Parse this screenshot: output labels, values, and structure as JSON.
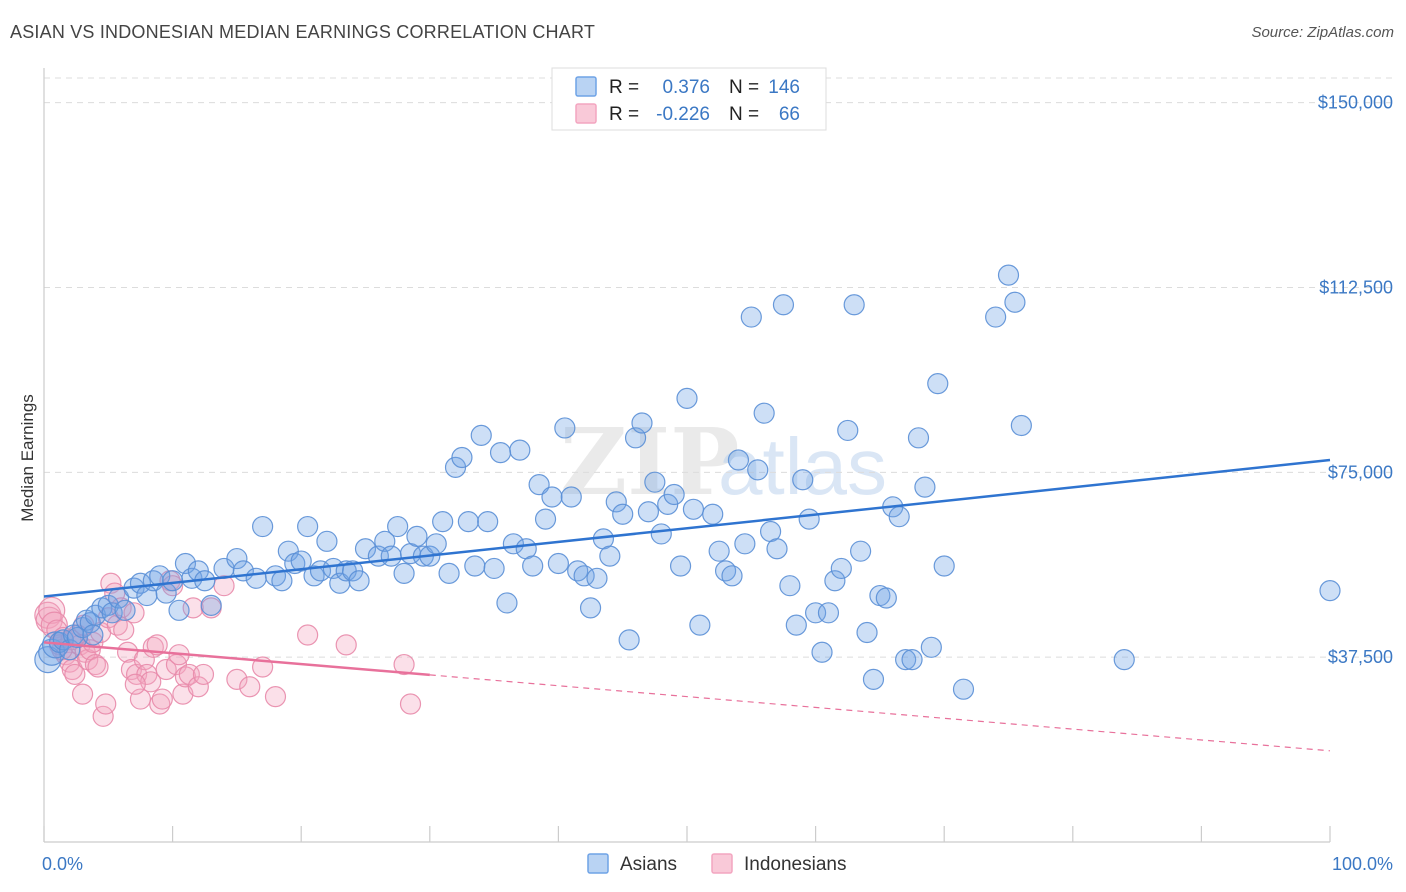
{
  "header": {
    "title": "ASIAN VS INDONESIAN MEDIAN EARNINGS CORRELATION CHART",
    "source": "Source: ZipAtlas.com"
  },
  "watermark": {
    "zip": "ZIP",
    "atlas": "atlas"
  },
  "colors": {
    "asians": "#6fa3e6",
    "asians_stroke": "#5a8fd6",
    "asians_line": "#2f74d0",
    "indonesians": "#f3a6c0",
    "indonesians_stroke": "#e889aa",
    "indonesians_line": "#e8719b",
    "tick_text": "#3b78c4",
    "grid": "#dcdcdc"
  },
  "legend": {
    "items": [
      {
        "r_label": "R =",
        "r_value": "0.376",
        "n_label": "N =",
        "n_value": "146"
      },
      {
        "r_label": "R =",
        "r_value": "-0.226",
        "n_label": "N =",
        "n_value": "66"
      }
    ]
  },
  "chart_data": {
    "type": "scatter",
    "title": "ASIAN VS INDONESIAN MEDIAN EARNINGS CORRELATION CHART",
    "xlabel": "",
    "ylabel": "Median Earnings",
    "xlim": [
      0,
      100
    ],
    "ylim": [
      0,
      155000
    ],
    "x_tick_labels": [
      "0.0%",
      "100.0%"
    ],
    "y_ticks": [
      37500,
      75000,
      112500,
      150000
    ],
    "y_tick_labels": [
      "$37,500",
      "$75,000",
      "$112,500",
      "$150,000"
    ],
    "legend_position": "bottom-center",
    "series": [
      {
        "name": "Asians",
        "r": 0.376,
        "n": 146,
        "trend": {
          "x": [
            0,
            100
          ],
          "y": [
            49800,
            77500
          ],
          "dashed_from": null
        },
        "points": [
          [
            0.3,
            37000
          ],
          [
            0.6,
            38500
          ],
          [
            0.9,
            40000
          ],
          [
            1.2,
            40500
          ],
          [
            1.5,
            41000
          ],
          [
            2.0,
            39000
          ],
          [
            2.3,
            42000
          ],
          [
            2.6,
            41500
          ],
          [
            3.0,
            43500
          ],
          [
            3.3,
            45000
          ],
          [
            3.6,
            44500
          ],
          [
            4.0,
            46000
          ],
          [
            4.5,
            47500
          ],
          [
            5.0,
            48000
          ],
          [
            5.3,
            46500
          ],
          [
            5.8,
            49500
          ],
          [
            6.3,
            47000
          ],
          [
            7.0,
            51500
          ],
          [
            7.5,
            52500
          ],
          [
            8.0,
            50000
          ],
          [
            8.5,
            53000
          ],
          [
            9.0,
            54000
          ],
          [
            9.5,
            50500
          ],
          [
            10.0,
            53000
          ],
          [
            10.5,
            47000
          ],
          [
            11.0,
            56500
          ],
          [
            11.5,
            53500
          ],
          [
            12.0,
            55000
          ],
          [
            12.5,
            53000
          ],
          [
            13.0,
            48000
          ],
          [
            14.0,
            55500
          ],
          [
            15.0,
            57500
          ],
          [
            15.5,
            55000
          ],
          [
            16.5,
            53500
          ],
          [
            17.0,
            64000
          ],
          [
            18.0,
            54000
          ],
          [
            18.5,
            53000
          ],
          [
            19.0,
            59000
          ],
          [
            19.5,
            56500
          ],
          [
            20.0,
            57000
          ],
          [
            20.5,
            64000
          ],
          [
            21.0,
            54000
          ],
          [
            21.5,
            55000
          ],
          [
            22.0,
            61000
          ],
          [
            22.5,
            55500
          ],
          [
            23.0,
            52500
          ],
          [
            23.5,
            55000
          ],
          [
            24.0,
            55000
          ],
          [
            24.5,
            53000
          ],
          [
            25.0,
            59500
          ],
          [
            26.0,
            58000
          ],
          [
            26.5,
            61000
          ],
          [
            27.0,
            58000
          ],
          [
            27.5,
            64000
          ],
          [
            28.0,
            54500
          ],
          [
            28.5,
            58500
          ],
          [
            29.0,
            62000
          ],
          [
            29.5,
            58000
          ],
          [
            30.0,
            58000
          ],
          [
            30.5,
            60500
          ],
          [
            31.0,
            65000
          ],
          [
            31.5,
            54500
          ],
          [
            32.0,
            76000
          ],
          [
            32.5,
            78000
          ],
          [
            33.0,
            65000
          ],
          [
            33.5,
            56000
          ],
          [
            34.0,
            82500
          ],
          [
            34.5,
            65000
          ],
          [
            35.0,
            55500
          ],
          [
            35.5,
            79000
          ],
          [
            36.0,
            48500
          ],
          [
            36.5,
            60500
          ],
          [
            37.0,
            79500
          ],
          [
            37.5,
            59500
          ],
          [
            38.0,
            56000
          ],
          [
            38.5,
            72500
          ],
          [
            39.0,
            65500
          ],
          [
            39.5,
            70000
          ],
          [
            40.0,
            56500
          ],
          [
            40.5,
            84000
          ],
          [
            41.0,
            70000
          ],
          [
            41.5,
            55000
          ],
          [
            42.0,
            54000
          ],
          [
            42.5,
            47500
          ],
          [
            43.0,
            53500
          ],
          [
            43.5,
            61500
          ],
          [
            44.0,
            58000
          ],
          [
            44.5,
            69000
          ],
          [
            45.0,
            66500
          ],
          [
            45.5,
            41000
          ],
          [
            46.0,
            82000
          ],
          [
            46.5,
            85000
          ],
          [
            47.0,
            67000
          ],
          [
            47.5,
            73000
          ],
          [
            48.0,
            62500
          ],
          [
            48.5,
            68500
          ],
          [
            49.0,
            70500
          ],
          [
            49.5,
            56000
          ],
          [
            50.0,
            90000
          ],
          [
            50.5,
            67500
          ],
          [
            51.0,
            44000
          ],
          [
            52.0,
            66500
          ],
          [
            52.5,
            59000
          ],
          [
            53.0,
            55000
          ],
          [
            53.5,
            54000
          ],
          [
            54.0,
            77500
          ],
          [
            54.5,
            60500
          ],
          [
            55.0,
            106500
          ],
          [
            55.5,
            75500
          ],
          [
            56.0,
            87000
          ],
          [
            56.5,
            63000
          ],
          [
            57.0,
            59500
          ],
          [
            57.5,
            109000
          ],
          [
            58.0,
            52000
          ],
          [
            58.5,
            44000
          ],
          [
            59.0,
            73500
          ],
          [
            59.5,
            65500
          ],
          [
            60.0,
            46500
          ],
          [
            60.5,
            38500
          ],
          [
            61.0,
            46500
          ],
          [
            61.5,
            53000
          ],
          [
            62.0,
            55500
          ],
          [
            62.5,
            83500
          ],
          [
            63.0,
            109000
          ],
          [
            63.5,
            59000
          ],
          [
            64.0,
            42500
          ],
          [
            64.5,
            33000
          ],
          [
            65.0,
            50000
          ],
          [
            65.5,
            49500
          ],
          [
            66.0,
            68000
          ],
          [
            66.5,
            66000
          ],
          [
            67.0,
            37000
          ],
          [
            67.5,
            37000
          ],
          [
            68.0,
            82000
          ],
          [
            68.5,
            72000
          ],
          [
            69.0,
            39500
          ],
          [
            69.5,
            93000
          ],
          [
            70.0,
            56000
          ],
          [
            71.5,
            31000
          ],
          [
            74.0,
            106500
          ],
          [
            75.0,
            115000
          ],
          [
            75.5,
            109500
          ],
          [
            76.0,
            84500
          ],
          [
            84.0,
            37000
          ],
          [
            100.0,
            51000
          ],
          [
            3.8,
            42000
          ]
        ]
      },
      {
        "name": "Indonesians",
        "r": -0.226,
        "n": 66,
        "trend": {
          "x": [
            0,
            100
          ],
          "y": [
            40500,
            18500
          ],
          "dashed_from": 30
        },
        "points": [
          [
            0.3,
            46000
          ],
          [
            0.4,
            45000
          ],
          [
            0.6,
            47000
          ],
          [
            0.8,
            44000
          ],
          [
            1.0,
            43000
          ],
          [
            1.2,
            40000
          ],
          [
            1.5,
            41500
          ],
          [
            1.7,
            38000
          ],
          [
            2.0,
            36500
          ],
          [
            2.2,
            35000
          ],
          [
            2.4,
            34000
          ],
          [
            2.6,
            42000
          ],
          [
            2.8,
            40000
          ],
          [
            3.0,
            30000
          ],
          [
            3.2,
            38500
          ],
          [
            3.4,
            37000
          ],
          [
            3.6,
            39000
          ],
          [
            3.8,
            40500
          ],
          [
            4.0,
            36000
          ],
          [
            4.2,
            35500
          ],
          [
            4.4,
            42500
          ],
          [
            4.6,
            25500
          ],
          [
            4.8,
            28000
          ],
          [
            5.0,
            45500
          ],
          [
            5.2,
            52500
          ],
          [
            5.5,
            50500
          ],
          [
            5.7,
            44000
          ],
          [
            6.0,
            47500
          ],
          [
            6.2,
            43000
          ],
          [
            6.5,
            38500
          ],
          [
            6.8,
            35000
          ],
          [
            7.0,
            46500
          ],
          [
            7.2,
            34000
          ],
          [
            7.5,
            29000
          ],
          [
            7.8,
            37000
          ],
          [
            8.0,
            34000
          ],
          [
            8.3,
            32500
          ],
          [
            8.5,
            39500
          ],
          [
            8.8,
            40000
          ],
          [
            9.0,
            28000
          ],
          [
            9.2,
            29000
          ],
          [
            9.5,
            35000
          ],
          [
            9.8,
            53000
          ],
          [
            10.0,
            52000
          ],
          [
            10.3,
            36000
          ],
          [
            10.5,
            38000
          ],
          [
            10.8,
            30000
          ],
          [
            11.0,
            33500
          ],
          [
            11.3,
            34000
          ],
          [
            11.6,
            47500
          ],
          [
            12.0,
            31500
          ],
          [
            12.4,
            34000
          ],
          [
            13.0,
            47500
          ],
          [
            14.0,
            52000
          ],
          [
            15.0,
            33000
          ],
          [
            16.0,
            31500
          ],
          [
            17.0,
            35500
          ],
          [
            18.0,
            29500
          ],
          [
            20.5,
            42000
          ],
          [
            23.5,
            40000
          ],
          [
            28.0,
            36000
          ],
          [
            28.5,
            28000
          ],
          [
            1.4,
            39000
          ],
          [
            2.1,
            41000
          ],
          [
            3.1,
            44000
          ],
          [
            7.1,
            32000
          ]
        ]
      }
    ]
  }
}
